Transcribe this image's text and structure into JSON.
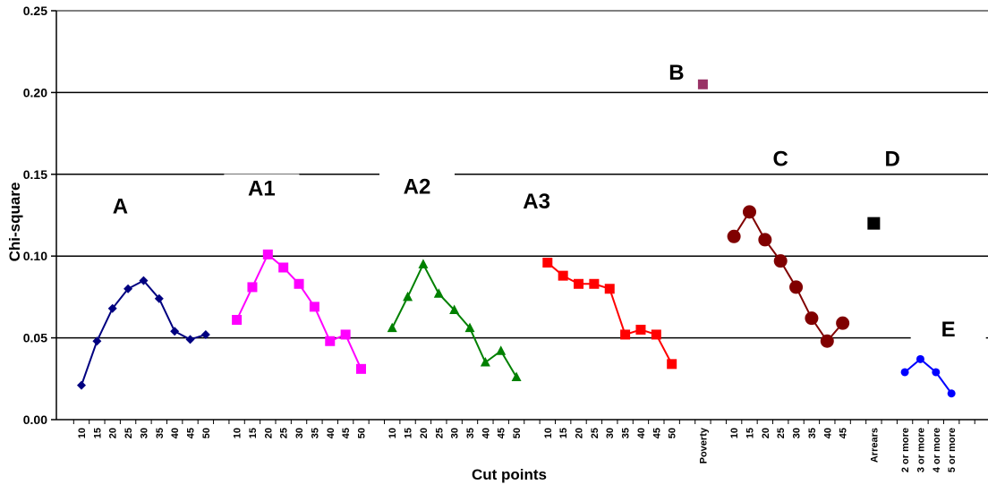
{
  "chart_data": {
    "type": "line",
    "title": "",
    "xlabel": "Cut points",
    "ylabel": "Chi-square",
    "ylim": [
      0,
      0.25
    ],
    "yticks": [
      "0.00",
      "0.05",
      "0.10",
      "0.15",
      "0.20",
      "0.25"
    ],
    "grid": true,
    "series": [
      {
        "name": "A",
        "color": "#000080",
        "marker": "diamond",
        "x": [
          "10",
          "15",
          "20",
          "25",
          "30",
          "35",
          "40",
          "45",
          "50"
        ],
        "values": [
          0.021,
          0.048,
          0.068,
          0.08,
          0.085,
          0.074,
          0.054,
          0.049,
          0.052
        ]
      },
      {
        "name": "A1",
        "color": "#FF00FF",
        "marker": "square",
        "x": [
          "10",
          "15",
          "20",
          "25",
          "30",
          "35",
          "40",
          "45",
          "50"
        ],
        "values": [
          0.061,
          0.081,
          0.101,
          0.093,
          0.083,
          0.069,
          0.048,
          0.052,
          0.031
        ]
      },
      {
        "name": "A2",
        "color": "#008000",
        "marker": "triangle",
        "x": [
          "10",
          "15",
          "20",
          "25",
          "30",
          "35",
          "40",
          "45",
          "50"
        ],
        "values": [
          0.056,
          0.075,
          0.095,
          0.077,
          0.067,
          0.056,
          0.035,
          0.042,
          0.026
        ]
      },
      {
        "name": "A3",
        "color": "#FF0000",
        "marker": "square",
        "x": [
          "10",
          "15",
          "20",
          "25",
          "30",
          "35",
          "40",
          "45",
          "50"
        ],
        "values": [
          0.096,
          0.088,
          0.083,
          0.083,
          0.08,
          0.052,
          0.055,
          0.052,
          0.034
        ]
      },
      {
        "name": "B",
        "color": "#993366",
        "marker": "square",
        "x": [
          "Poverty"
        ],
        "values": [
          0.205
        ]
      },
      {
        "name": "C",
        "color": "#800000",
        "marker": "circle",
        "x": [
          "10",
          "15",
          "20",
          "25",
          "30",
          "35",
          "40",
          "45"
        ],
        "values": [
          0.112,
          0.127,
          0.11,
          0.097,
          0.081,
          0.062,
          0.048,
          0.059
        ]
      },
      {
        "name": "D",
        "color": "#000000",
        "marker": "square",
        "x": [
          "Arrears"
        ],
        "values": [
          0.12
        ]
      },
      {
        "name": "E",
        "color": "#0000FF",
        "marker": "circle",
        "x": [
          "2 or more",
          "3 or more",
          "4 or more",
          "5 or more"
        ],
        "values": [
          0.029,
          0.037,
          0.029,
          0.016
        ]
      }
    ]
  }
}
